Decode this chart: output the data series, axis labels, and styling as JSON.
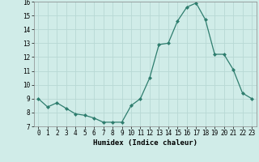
{
  "x": [
    0,
    1,
    2,
    3,
    4,
    5,
    6,
    7,
    8,
    9,
    10,
    11,
    12,
    13,
    14,
    15,
    16,
    17,
    18,
    19,
    20,
    21,
    22,
    23
  ],
  "y": [
    9.0,
    8.4,
    8.7,
    8.3,
    7.9,
    7.8,
    7.6,
    7.3,
    7.3,
    7.3,
    8.5,
    9.0,
    10.5,
    12.9,
    13.0,
    14.6,
    15.6,
    15.9,
    14.7,
    12.2,
    12.2,
    11.1,
    9.4,
    9.0
  ],
  "line_color": "#2e7d6e",
  "marker": "D",
  "marker_size": 2,
  "bg_color": "#d0ece8",
  "grid_color": "#b8d8d4",
  "xlabel": "Humidex (Indice chaleur)",
  "ylim": [
    7,
    16
  ],
  "xlim": [
    -0.5,
    23.5
  ],
  "yticks": [
    7,
    8,
    9,
    10,
    11,
    12,
    13,
    14,
    15,
    16
  ],
  "xticks": [
    0,
    1,
    2,
    3,
    4,
    5,
    6,
    7,
    8,
    9,
    10,
    11,
    12,
    13,
    14,
    15,
    16,
    17,
    18,
    19,
    20,
    21,
    22,
    23
  ],
  "xlabel_fontsize": 6.5,
  "tick_fontsize": 5.5
}
